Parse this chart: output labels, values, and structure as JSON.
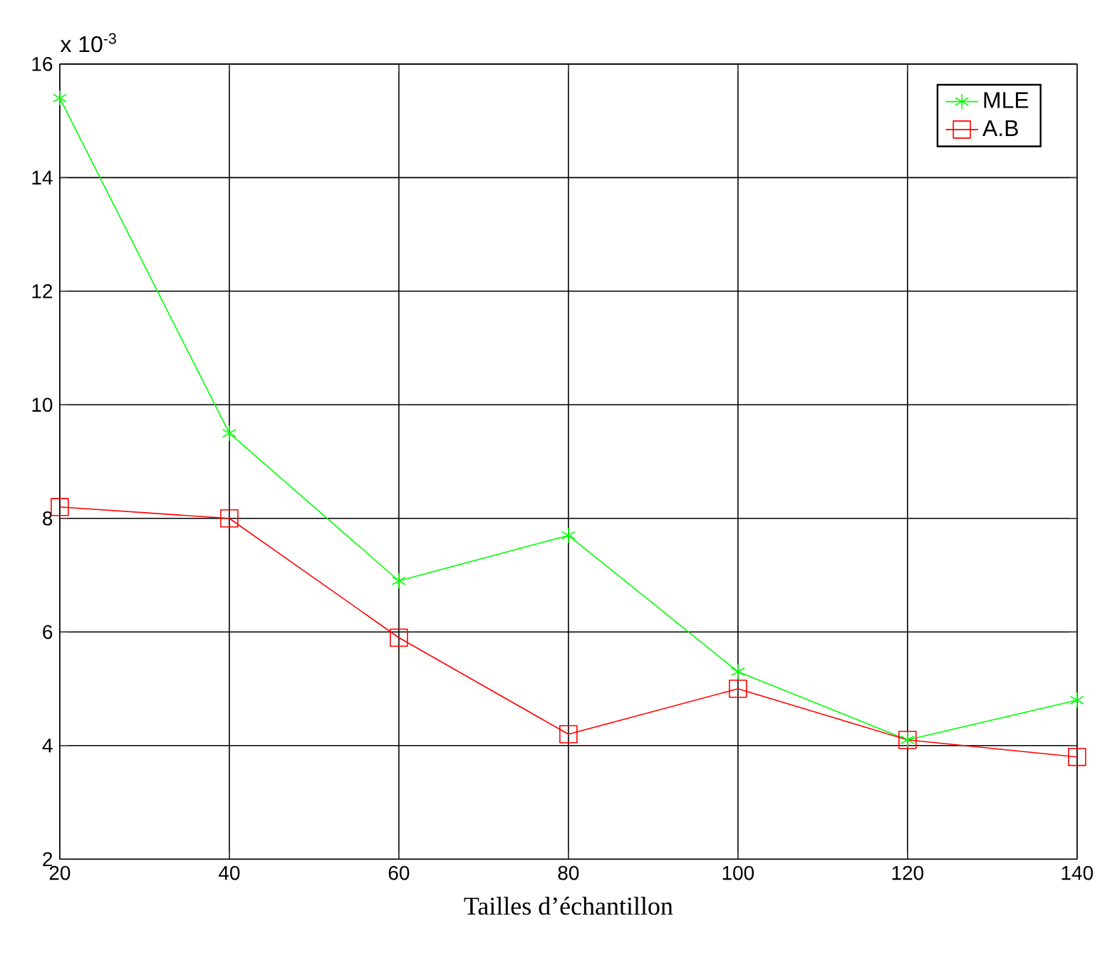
{
  "chart_data": {
    "type": "line",
    "xlabel": "Tailles d’échantillon",
    "annotations": [
      "x 10$^{-3}$"
    ],
    "x": [
      20,
      40,
      60,
      80,
      100,
      120,
      140
    ],
    "series": [
      {
        "name": "MLE",
        "color": "#00ff00",
        "marker": "cross",
        "values": [
          15.4,
          9.5,
          6.9,
          7.7,
          5.3,
          4.1,
          4.8
        ]
      },
      {
        "name": "A.B",
        "color": "#ff0000",
        "marker": "square",
        "values": [
          8.2,
          8.0,
          5.9,
          4.2,
          5.0,
          4.1,
          3.8
        ]
      }
    ],
    "xlim": [
      20,
      140
    ],
    "xticks": [
      20,
      40,
      60,
      80,
      100,
      120,
      140
    ],
    "ylim": [
      2,
      16
    ],
    "yticks": [
      2,
      4,
      6,
      8,
      10,
      12,
      14,
      16
    ],
    "grid": true,
    "legend": "top right",
    "line_style": "solid"
  }
}
